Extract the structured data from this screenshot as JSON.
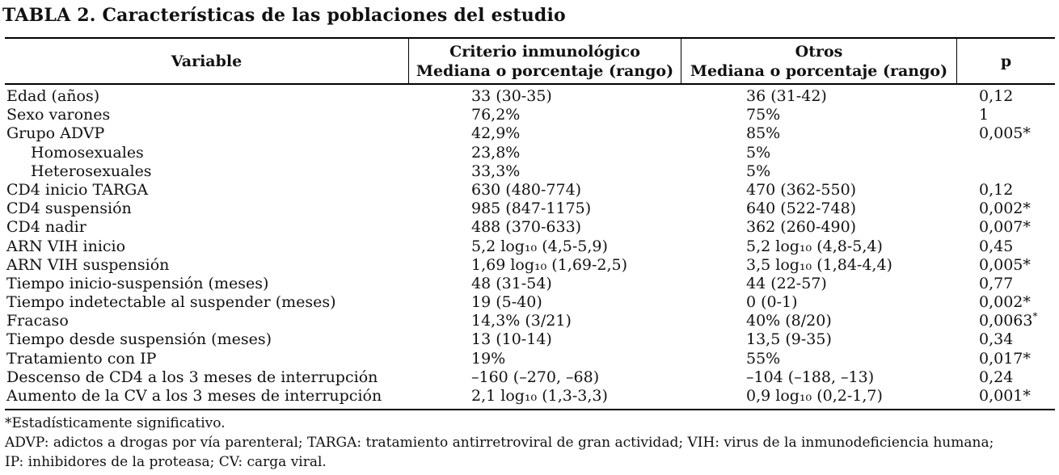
{
  "table": {
    "title": "TABLA 2. Características de las poblaciones del estudio",
    "columns": {
      "variable": "Variable",
      "group1_line1": "Criterio inmunológico",
      "group1_line2": "Mediana o porcentaje (rango)",
      "group2_line1": "Otros",
      "group2_line2": "Mediana o porcentaje (rango)",
      "p": "p"
    },
    "rows": [
      {
        "variable": "Edad (años)",
        "indent": false,
        "inmunologico": "33 (30-35)",
        "otros": "36 (31-42)",
        "p": "0,12"
      },
      {
        "variable": "Sexo varones",
        "indent": false,
        "inmunologico": "76,2%",
        "otros": "75%",
        "p": "1"
      },
      {
        "variable": "Grupo ADVP",
        "indent": false,
        "inmunologico": "42,9%",
        "otros": "85%",
        "p": "0,005*"
      },
      {
        "variable": "Homosexuales",
        "indent": true,
        "inmunologico": "23,8%",
        "otros": "5%",
        "p": ""
      },
      {
        "variable": "Heterosexuales",
        "indent": true,
        "inmunologico": "33,3%",
        "otros": "5%",
        "p": ""
      },
      {
        "variable": "CD4 inicio TARGA",
        "indent": false,
        "inmunologico": "630 (480-774)",
        "otros": "470 (362-550)",
        "p": "0,12"
      },
      {
        "variable": "CD4 suspensión",
        "indent": false,
        "inmunologico": "985 (847-1175)",
        "otros": "640 (522-748)",
        "p": "0,002*"
      },
      {
        "variable": "CD4 nadir",
        "indent": false,
        "inmunologico": "488 (370-633)",
        "otros": "362 (260-490)",
        "p": "0,007*"
      },
      {
        "variable": "ARN VIH inicio",
        "indent": false,
        "inmunologico": "5,2 log₁₀ (4,5-5,9)",
        "otros": "5,2 log₁₀ (4,8-5,4)",
        "p": "0,45"
      },
      {
        "variable": "ARN VIH suspensión",
        "indent": false,
        "inmunologico": "1,69 log₁₀ (1,69-2,5)",
        "otros": "3,5 log₁₀ (1,84-4,4)",
        "p": "0,005*"
      },
      {
        "variable": "Tiempo inicio-suspensión (meses)",
        "indent": false,
        "inmunologico": "48 (31-54)",
        "otros": "44 (22-57)",
        "p": "0,77"
      },
      {
        "variable": "Tiempo indetectable al suspender (meses)",
        "indent": false,
        "inmunologico": "19 (5-40)",
        "otros": "0 (0-1)",
        "p": "0,002*"
      },
      {
        "variable": "Fracaso",
        "indent": false,
        "inmunologico": "14,3% (3/21)",
        "otros": "40% (8/20)",
        "p": "0,0063",
        "p_sup": "*"
      },
      {
        "variable": "Tiempo desde suspensión (meses)",
        "indent": false,
        "inmunologico": "13 (10-14)",
        "otros": "13,5 (9-35)",
        "p": "0,34"
      },
      {
        "variable": "Tratamiento con IP",
        "indent": false,
        "inmunologico": "19%",
        "otros": "55%",
        "p": "0,017*"
      },
      {
        "variable": "Descenso de CD4 a los 3 meses de interrupción",
        "indent": false,
        "inmunologico": "–160 (–270, –68)",
        "otros": "–104 (–188, –13)",
        "p": "0,24"
      },
      {
        "variable": "Aumento de la CV a los 3 meses de interrupción",
        "indent": false,
        "inmunologico": "2,1 log₁₀ (1,3-3,3)",
        "otros": "0,9 log₁₀ (0,2-1,7)",
        "p": "0,001*"
      }
    ],
    "footnotes": [
      "*Estadísticamente significativo.",
      "ADVP: adictos a drogas por vía parenteral; TARGA: tratamiento antirretroviral de gran actividad; VIH: virus de la inmunodeficiencia humana;",
      "IP: inhibidores de la proteasa; CV: carga viral."
    ]
  },
  "colors": {
    "background": "#ffffff",
    "text": "#111111",
    "rule": "#000000"
  }
}
